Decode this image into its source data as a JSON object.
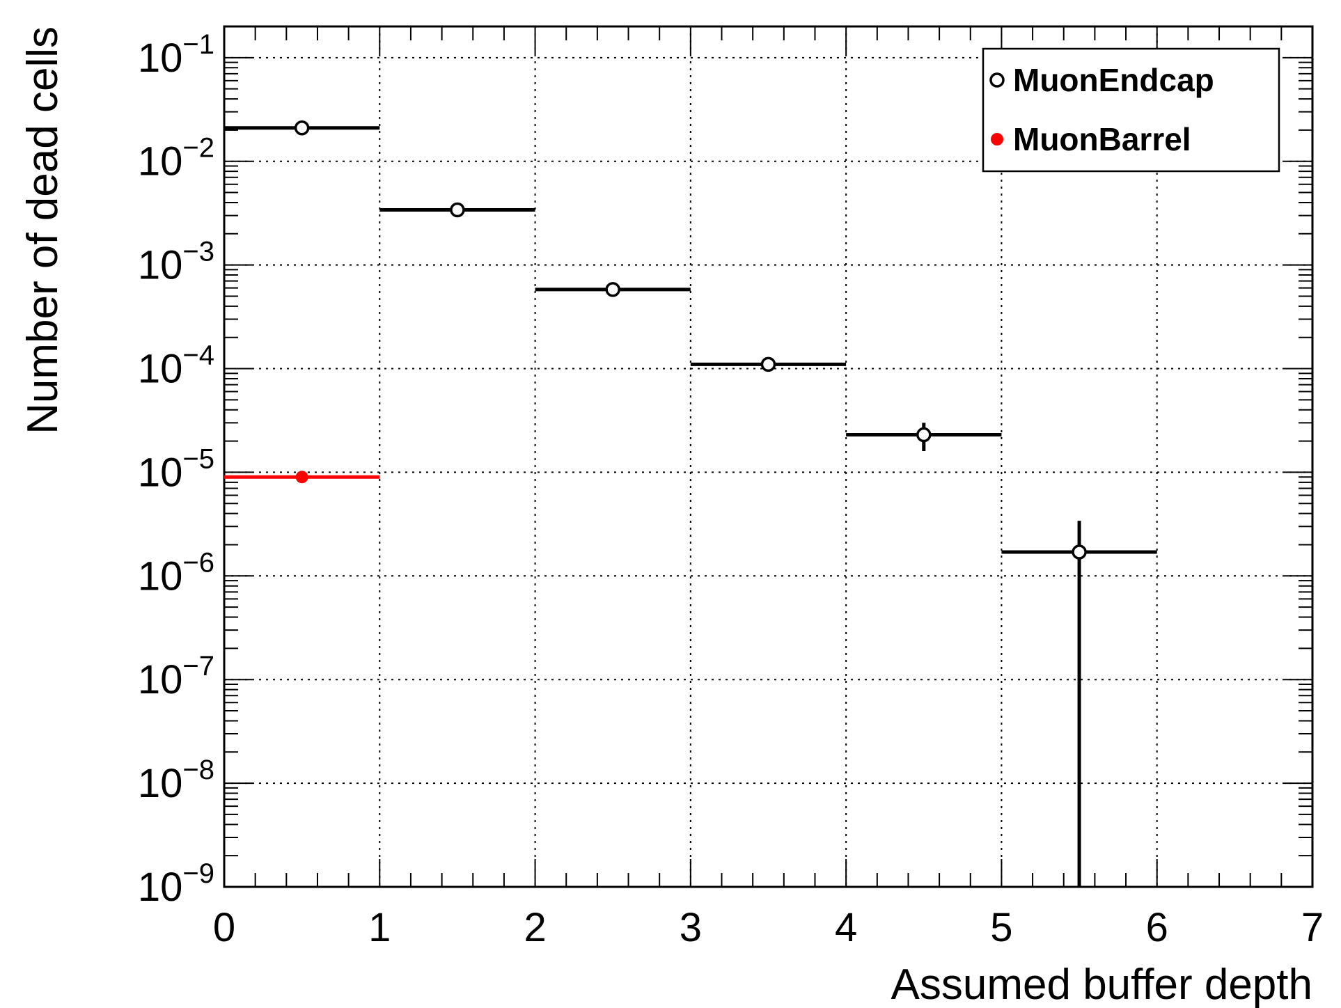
{
  "chart_data": {
    "type": "scatter",
    "xlabel": "Assumed buffer depth",
    "ylabel": "Number of dead cells",
    "xlim": [
      0,
      7
    ],
    "ylim": [
      1e-09,
      0.2
    ],
    "yscale": "log",
    "grid": true,
    "legend_position": "top-right",
    "x_ticks": [
      "0",
      "1",
      "2",
      "3",
      "4",
      "5",
      "6",
      "7"
    ],
    "y_ticks": [
      {
        "base": "10",
        "exp": "−9",
        "value": 1e-09
      },
      {
        "base": "10",
        "exp": "−8",
        "value": 1e-08
      },
      {
        "base": "10",
        "exp": "−7",
        "value": 1e-07
      },
      {
        "base": "10",
        "exp": "−6",
        "value": 1e-06
      },
      {
        "base": "10",
        "exp": "−5",
        "value": 1e-05
      },
      {
        "base": "10",
        "exp": "−4",
        "value": 0.0001
      },
      {
        "base": "10",
        "exp": "−3",
        "value": 0.001
      },
      {
        "base": "10",
        "exp": "−2",
        "value": 0.01
      },
      {
        "base": "10",
        "exp": "−1",
        "value": 0.1
      }
    ],
    "series": [
      {
        "name": "MuonEndcap",
        "color": "#000000",
        "marker": "open-circle",
        "points": [
          {
            "x": 0.5,
            "xlo": 0,
            "xhi": 1,
            "y": 0.021,
            "ylo": 0.021,
            "yhi": 0.021
          },
          {
            "x": 1.5,
            "xlo": 1,
            "xhi": 2,
            "y": 0.0034,
            "ylo": 0.0034,
            "yhi": 0.0034
          },
          {
            "x": 2.5,
            "xlo": 2,
            "xhi": 3,
            "y": 0.00058,
            "ylo": 0.00058,
            "yhi": 0.00058
          },
          {
            "x": 3.5,
            "xlo": 3,
            "xhi": 4,
            "y": 0.00011,
            "ylo": 0.00011,
            "yhi": 0.00011
          },
          {
            "x": 4.5,
            "xlo": 4,
            "xhi": 5,
            "y": 2.3e-05,
            "ylo": 1.6e-05,
            "yhi": 3e-05
          },
          {
            "x": 5.5,
            "xlo": 5,
            "xhi": 6,
            "y": 1.7e-06,
            "ylo": 1e-09,
            "yhi": 3.4e-06
          }
        ]
      },
      {
        "name": "MuonBarrel",
        "color": "#ff0000",
        "marker": "filled-circle",
        "points": [
          {
            "x": 0.5,
            "xlo": 0,
            "xhi": 1,
            "y": 9e-06,
            "ylo": 9e-06,
            "yhi": 9e-06
          }
        ]
      }
    ]
  }
}
